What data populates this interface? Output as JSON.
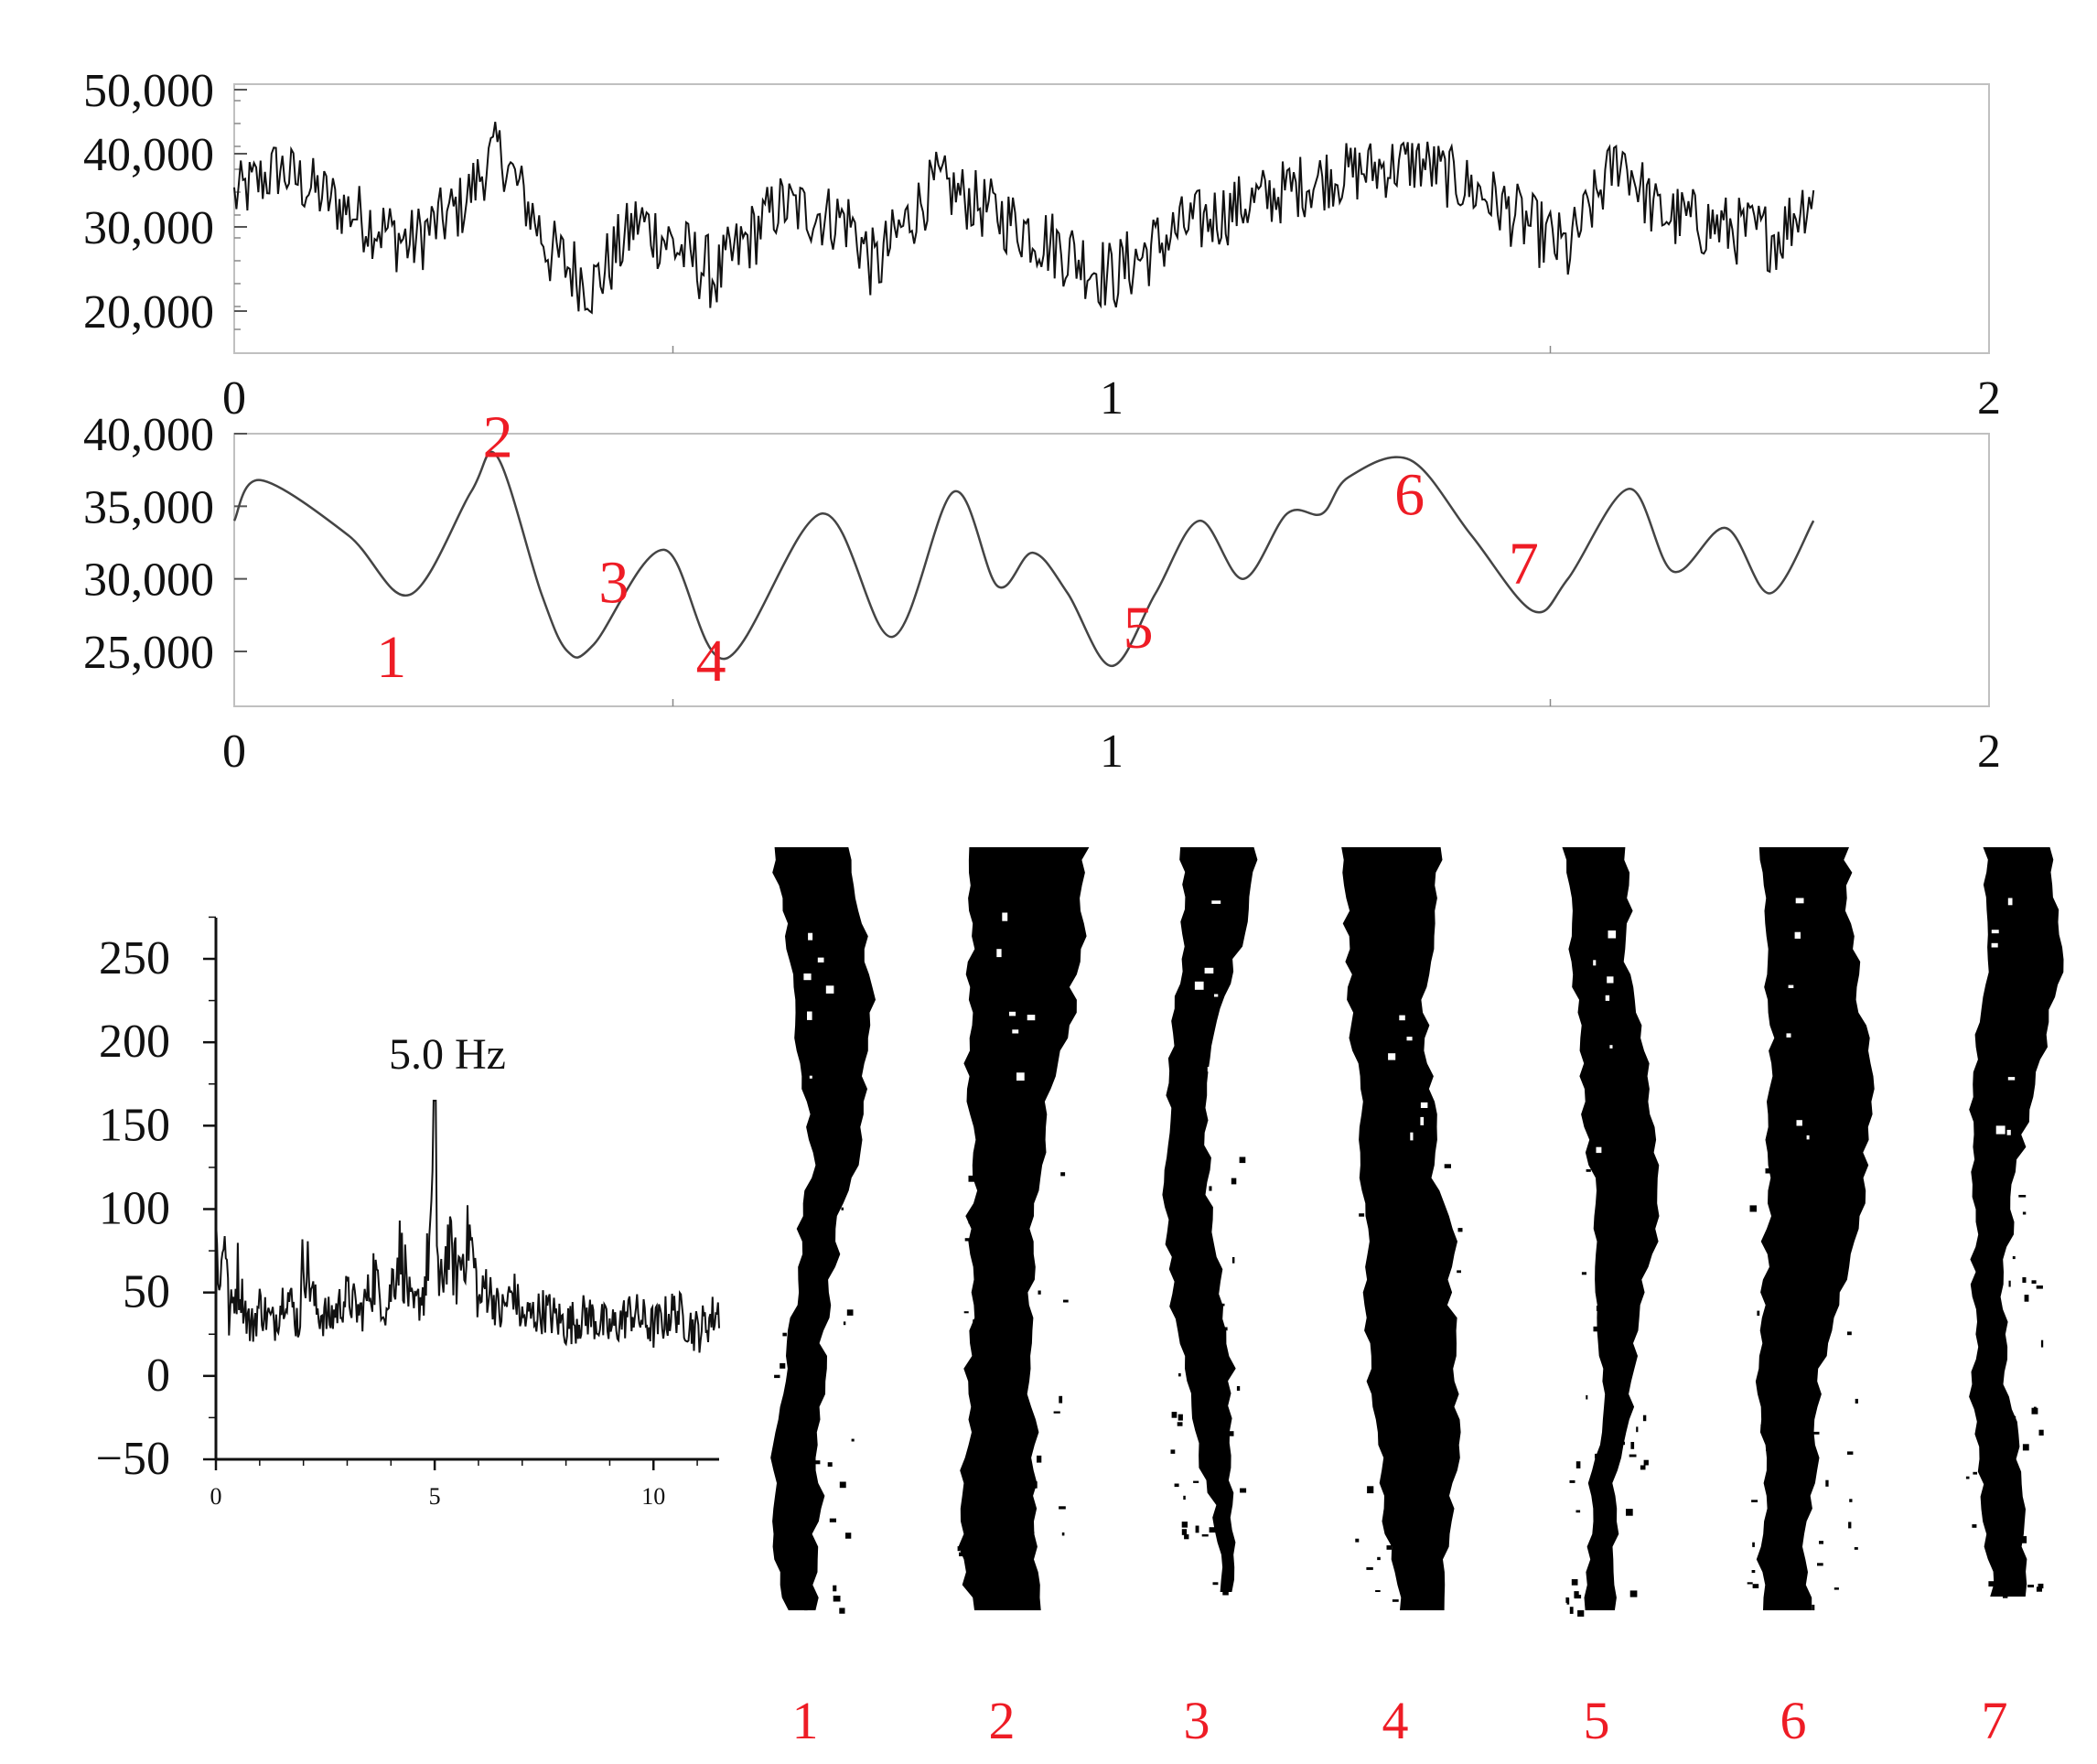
{
  "chart_data": [
    {
      "type": "line",
      "name": "raw-signal",
      "xlim": [
        0,
        2
      ],
      "ylim": [
        15000,
        50000
      ],
      "x_ticks": [
        "0",
        "1",
        "2"
      ],
      "y_ticks": [
        "50,000",
        "40,000",
        "30,000",
        "20,000"
      ],
      "y_tick_values": [
        50000,
        40000,
        30000,
        20000
      ],
      "series": [
        {
          "x": [
            0,
            0.05,
            0.12,
            0.2,
            0.26,
            0.3,
            0.36,
            0.41,
            0.46,
            0.55,
            0.62,
            0.7,
            0.73,
            0.8,
            0.9,
            1.0,
            1.08,
            1.15,
            1.25,
            1.35,
            1.43,
            1.52,
            1.58,
            1.62,
            1.7,
            1.76,
            1.8
          ],
          "y": [
            34000,
            38000,
            33000,
            28000,
            33000,
            41000,
            27000,
            23000,
            31000,
            24000,
            33000,
            31000,
            25000,
            36000,
            30000,
            24000,
            30000,
            33000,
            37000,
            39000,
            34000,
            27000,
            40000,
            32000,
            30000,
            29000,
            35000
          ]
        }
      ]
    },
    {
      "type": "line",
      "name": "smoothed-signal",
      "xlim": [
        0,
        2
      ],
      "ylim": [
        22000,
        40000
      ],
      "x_ticks": [
        "0",
        "1",
        "2"
      ],
      "y_ticks": [
        "40,000",
        "35,000",
        "30,000",
        "25,000"
      ],
      "y_tick_values": [
        40000,
        35000,
        30000,
        25000
      ],
      "series": [
        {
          "x": [
            0,
            0.03,
            0.13,
            0.2,
            0.27,
            0.3,
            0.35,
            0.38,
            0.41,
            0.49,
            0.56,
            0.67,
            0.75,
            0.82,
            0.87,
            0.91,
            0.95,
            1.0,
            1.05,
            1.1,
            1.15,
            1.2,
            1.24,
            1.27,
            1.34,
            1.41,
            1.48,
            1.52,
            1.59,
            1.64,
            1.7,
            1.75,
            1.8
          ],
          "y": [
            34000,
            36800,
            33000,
            28900,
            36000,
            38400,
            29000,
            25000,
            25500,
            32000,
            24500,
            34500,
            26000,
            36000,
            29500,
            31800,
            29000,
            24000,
            29000,
            34000,
            30000,
            34500,
            34500,
            37000,
            38200,
            33000,
            27800,
            30000,
            36200,
            30500,
            33500,
            29000,
            34000
          ]
        }
      ],
      "annotations": [
        {
          "label": "1",
          "x": 0.2,
          "y": 28900
        },
        {
          "label": "2",
          "x": 0.29,
          "y": 38400
        },
        {
          "label": "3",
          "x": 0.37,
          "y": 29000
        },
        {
          "label": "4",
          "x": 0.46,
          "y": 25500
        },
        {
          "label": "5",
          "x": 1.02,
          "y": 24000
        },
        {
          "label": "6",
          "x": 1.35,
          "y": 38200
        },
        {
          "label": "7",
          "x": 1.48,
          "y": 27800
        }
      ]
    },
    {
      "type": "line",
      "name": "spectrum",
      "xlim": [
        0,
        11.5
      ],
      "ylim": [
        -50,
        275
      ],
      "x_ticks": [
        "0",
        "5",
        "10"
      ],
      "x_tick_values": [
        0,
        5,
        10
      ],
      "y_ticks": [
        "250",
        "200",
        "150",
        "100",
        "50",
        "0",
        "−50"
      ],
      "y_tick_values": [
        250,
        200,
        150,
        100,
        50,
        0,
        -50
      ],
      "peak_label": "5.0 Hz",
      "series": [
        {
          "x": [
            0,
            0.1,
            0.2,
            0.3,
            0.5,
            0.8,
            1.0,
            1.3,
            1.6,
            1.9,
            2.0,
            2.3,
            2.6,
            3.0,
            3.3,
            3.6,
            3.9,
            4.2,
            4.5,
            4.8,
            5.0,
            5.1,
            5.3,
            5.5,
            5.8,
            6.0,
            6.2,
            6.5,
            6.8,
            7.0,
            7.5,
            8.0,
            8.5,
            9.0,
            9.5,
            10.0,
            10.5,
            11.0,
            11.5
          ],
          "y": [
            110,
            60,
            125,
            30,
            70,
            20,
            45,
            25,
            60,
            25,
            90,
            40,
            30,
            55,
            35,
            70,
            40,
            95,
            35,
            65,
            165,
            50,
            100,
            70,
            110,
            45,
            65,
            35,
            60,
            30,
            40,
            25,
            35,
            20,
            38,
            22,
            40,
            18,
            40
          ]
        }
      ]
    }
  ],
  "photos": {
    "labels": [
      "1",
      "2",
      "3",
      "4",
      "5",
      "6",
      "7"
    ]
  }
}
